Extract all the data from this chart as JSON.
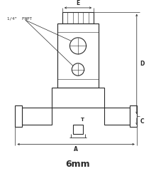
{
  "title": "6mm",
  "label_fnpt": "1/4\"  FNPT",
  "label_E": "E",
  "label_D": "D",
  "label_A": "A",
  "label_T": "T",
  "label_C": "C",
  "bg_color": "#ffffff",
  "line_color": "#2a2a2a",
  "figsize": [
    2.2,
    2.4
  ],
  "dpi": 100
}
